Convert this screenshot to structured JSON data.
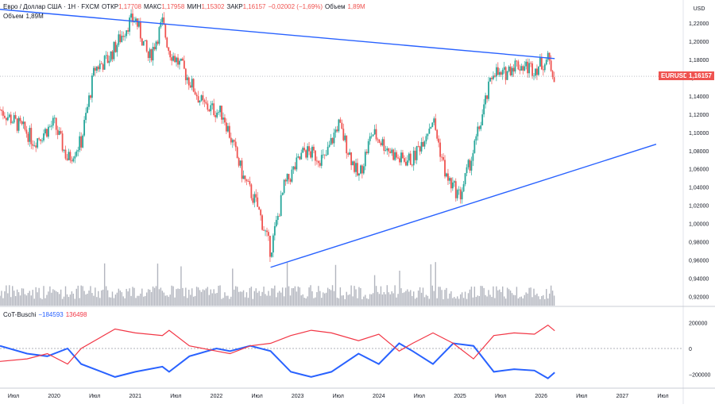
{
  "header": {
    "symbol_line": "Евро / Доллар США · 1Н · FXCM",
    "open_label": "ОТКР",
    "open": "1,17708",
    "high_label": "МАКС",
    "high": "1,17958",
    "low_label": "МИН",
    "low": "1,15302",
    "close_label": "ЗАКР",
    "close": "1,16157",
    "change": "−0,02002 (−1,69%)",
    "volume_label": "Объем",
    "volume": "1,89M"
  },
  "volume_legend": {
    "label": "Объем",
    "value": "1,89M"
  },
  "cot_legend": {
    "name": "CoT-Buschi",
    "v1": "−184593",
    "v2": "136498"
  },
  "price_axis": {
    "currency": "USD",
    "ticks": [
      "1,22000",
      "1,20000",
      "1,18000",
      "1,16000",
      "1,14000",
      "1,12000",
      "1,10000",
      "1,08000",
      "1,06000",
      "1,04000",
      "1,02000",
      "1,00000",
      "0,98000",
      "0,96000",
      "0,94000",
      "0,92000"
    ]
  },
  "cot_axis": {
    "ticks": [
      "200000",
      "0",
      "−200000"
    ]
  },
  "time_axis": {
    "ticks": [
      "Июл",
      "2020",
      "Июл",
      "2021",
      "Июл",
      "2022",
      "Июл",
      "2023",
      "Июл",
      "2024",
      "Июл",
      "2025",
      "Июл",
      "2026",
      "Июл",
      "2027",
      "Июл"
    ]
  },
  "current_price": {
    "symbol": "EURUSD",
    "value": "1,16157"
  },
  "colors": {
    "up": "#26a69a",
    "down": "#ef5350",
    "trend": "#2962ff",
    "cot_blue": "#2962ff",
    "cot_red": "#f23645",
    "volume": "#b2b5be"
  },
  "chart_data": [
    {
      "type": "candlestick",
      "title": "Евро / Доллар США · 1Н · FXCM",
      "x_range": [
        "2019-05",
        "2027-10"
      ],
      "ylim": [
        0.91,
        1.24
      ],
      "close_path": [
        [
          "2019-05",
          1.125
        ],
        [
          "2019-09",
          1.1
        ],
        [
          "2019-10",
          1.09
        ],
        [
          "2020-01",
          1.11
        ],
        [
          "2020-03",
          1.07
        ],
        [
          "2020-05",
          1.09
        ],
        [
          "2020-07",
          1.17
        ],
        [
          "2020-09",
          1.18
        ],
        [
          "2020-12",
          1.22
        ],
        [
          "2021-01",
          1.225
        ],
        [
          "2021-03",
          1.18
        ],
        [
          "2021-05",
          1.22
        ],
        [
          "2021-06",
          1.19
        ],
        [
          "2021-08",
          1.17
        ],
        [
          "2021-11",
          1.13
        ],
        [
          "2022-02",
          1.12
        ],
        [
          "2022-05",
          1.05
        ],
        [
          "2022-07",
          1.02
        ],
        [
          "2022-09",
          0.97
        ],
        [
          "2022-11",
          1.04
        ],
        [
          "2023-02",
          1.08
        ],
        [
          "2023-05",
          1.07
        ],
        [
          "2023-07",
          1.11
        ],
        [
          "2023-10",
          1.05
        ],
        [
          "2023-12",
          1.1
        ],
        [
          "2024-04",
          1.07
        ],
        [
          "2024-06",
          1.07
        ],
        [
          "2024-09",
          1.115
        ],
        [
          "2024-11",
          1.05
        ],
        [
          "2025-01",
          1.03
        ],
        [
          "2025-03",
          1.08
        ],
        [
          "2025-06",
          1.17
        ],
        [
          "2025-07",
          1.16
        ],
        [
          "2025-09",
          1.175
        ],
        [
          "2025-12",
          1.17
        ],
        [
          "2026-02",
          1.18
        ],
        [
          "2026-03",
          1.16157
        ]
      ],
      "annotations": [
        {
          "type": "trendline",
          "from": [
            "2019-05",
            1.235
          ],
          "to": [
            "2026-03",
            1.181
          ]
        },
        {
          "type": "trendline",
          "from": [
            "2022-09",
            0.952
          ],
          "to": [
            "2027-06",
            1.087
          ]
        },
        {
          "type": "hline",
          "price": 1.16157,
          "style": "dotted"
        }
      ]
    },
    {
      "type": "line",
      "title": "CoT-Buschi",
      "ylim": [
        -300000,
        300000
      ],
      "series": [
        {
          "name": "−184593",
          "color": "#2962ff",
          "points": [
            [
              "2019-05",
              20000
            ],
            [
              "2019-09",
              -40000
            ],
            [
              "2019-12",
              -60000
            ],
            [
              "2020-03",
              0
            ],
            [
              "2020-05",
              -120000
            ],
            [
              "2020-10",
              -220000
            ],
            [
              "2021-01",
              -180000
            ],
            [
              "2021-05",
              -140000
            ],
            [
              "2021-06",
              -180000
            ],
            [
              "2021-09",
              -60000
            ],
            [
              "2022-01",
              0
            ],
            [
              "2022-03",
              -20000
            ],
            [
              "2022-06",
              20000
            ],
            [
              "2022-09",
              -20000
            ],
            [
              "2022-12",
              -180000
            ],
            [
              "2023-03",
              -220000
            ],
            [
              "2023-06",
              -180000
            ],
            [
              "2023-10",
              -40000
            ],
            [
              "2024-01",
              -120000
            ],
            [
              "2024-04",
              40000
            ],
            [
              "2024-06",
              -20000
            ],
            [
              "2024-09",
              -120000
            ],
            [
              "2024-12",
              40000
            ],
            [
              "2025-03",
              20000
            ],
            [
              "2025-06",
              -180000
            ],
            [
              "2025-09",
              -160000
            ],
            [
              "2025-12",
              -170000
            ],
            [
              "2026-02",
              -230000
            ],
            [
              "2026-03",
              -184593
            ]
          ]
        },
        {
          "name": "136498",
          "color": "#f23645",
          "points": [
            [
              "2019-05",
              -100000
            ],
            [
              "2019-09",
              -80000
            ],
            [
              "2019-12",
              -40000
            ],
            [
              "2020-03",
              -120000
            ],
            [
              "2020-05",
              0
            ],
            [
              "2020-10",
              150000
            ],
            [
              "2021-01",
              120000
            ],
            [
              "2021-05",
              100000
            ],
            [
              "2021-06",
              140000
            ],
            [
              "2021-09",
              20000
            ],
            [
              "2022-01",
              -20000
            ],
            [
              "2022-03",
              -40000
            ],
            [
              "2022-06",
              20000
            ],
            [
              "2022-09",
              40000
            ],
            [
              "2022-12",
              100000
            ],
            [
              "2023-03",
              140000
            ],
            [
              "2023-06",
              120000
            ],
            [
              "2023-10",
              60000
            ],
            [
              "2024-01",
              110000
            ],
            [
              "2024-04",
              -20000
            ],
            [
              "2024-06",
              40000
            ],
            [
              "2024-09",
              120000
            ],
            [
              "2024-12",
              40000
            ],
            [
              "2025-03",
              -80000
            ],
            [
              "2025-06",
              100000
            ],
            [
              "2025-09",
              120000
            ],
            [
              "2025-12",
              110000
            ],
            [
              "2026-02",
              180000
            ],
            [
              "2026-03",
              136498
            ]
          ]
        }
      ]
    }
  ]
}
